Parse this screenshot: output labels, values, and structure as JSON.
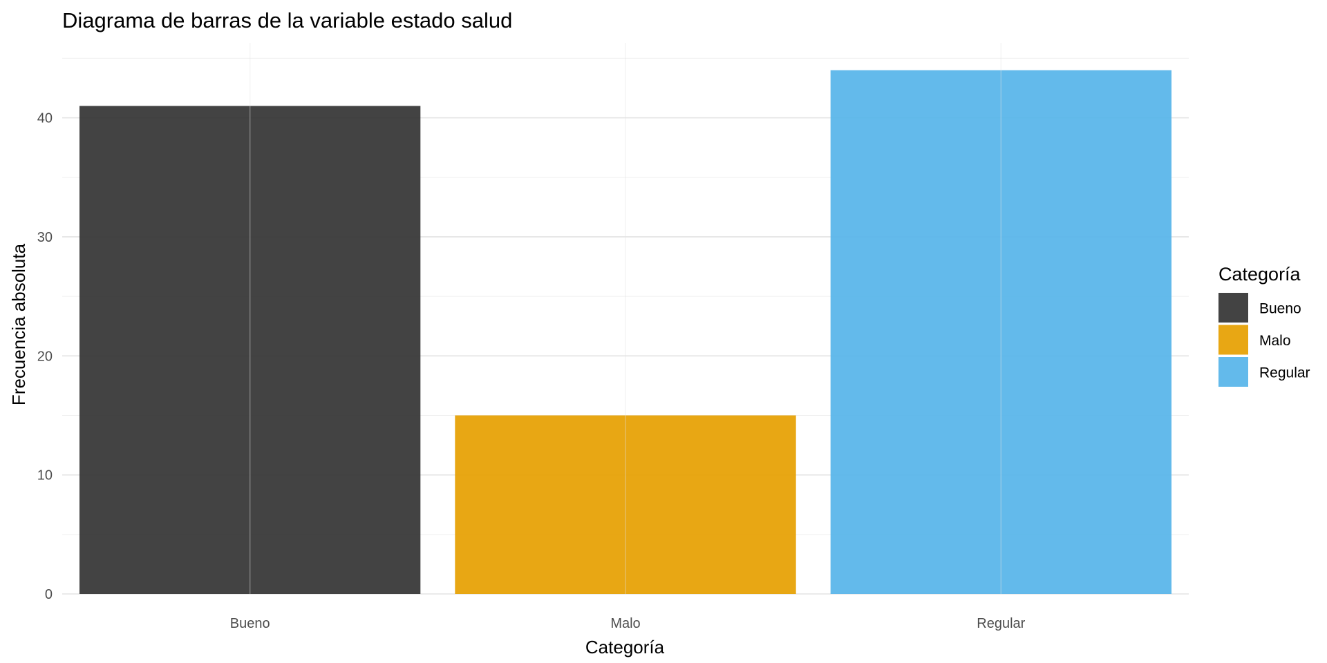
{
  "chart_data": {
    "type": "bar",
    "title": "Diagrama de barras de la variable estado salud",
    "xlabel": "Categoría",
    "ylabel": "Frecuencia absoluta",
    "categories": [
      "Bueno",
      "Malo",
      "Regular"
    ],
    "values": [
      41,
      15,
      44
    ],
    "colors": [
      "#333333",
      "#E69F00",
      "#56B4E9"
    ],
    "bar_opacity": 0.92,
    "ylim": [
      0,
      46.3
    ],
    "yticks": [
      0,
      10,
      20,
      30,
      40
    ],
    "yticks_labels": [
      "0",
      "10",
      "20",
      "30",
      "40"
    ],
    "grid": true,
    "legend": {
      "title": "Categoría",
      "position": "right",
      "entries": [
        "Bueno",
        "Malo",
        "Regular"
      ]
    }
  }
}
